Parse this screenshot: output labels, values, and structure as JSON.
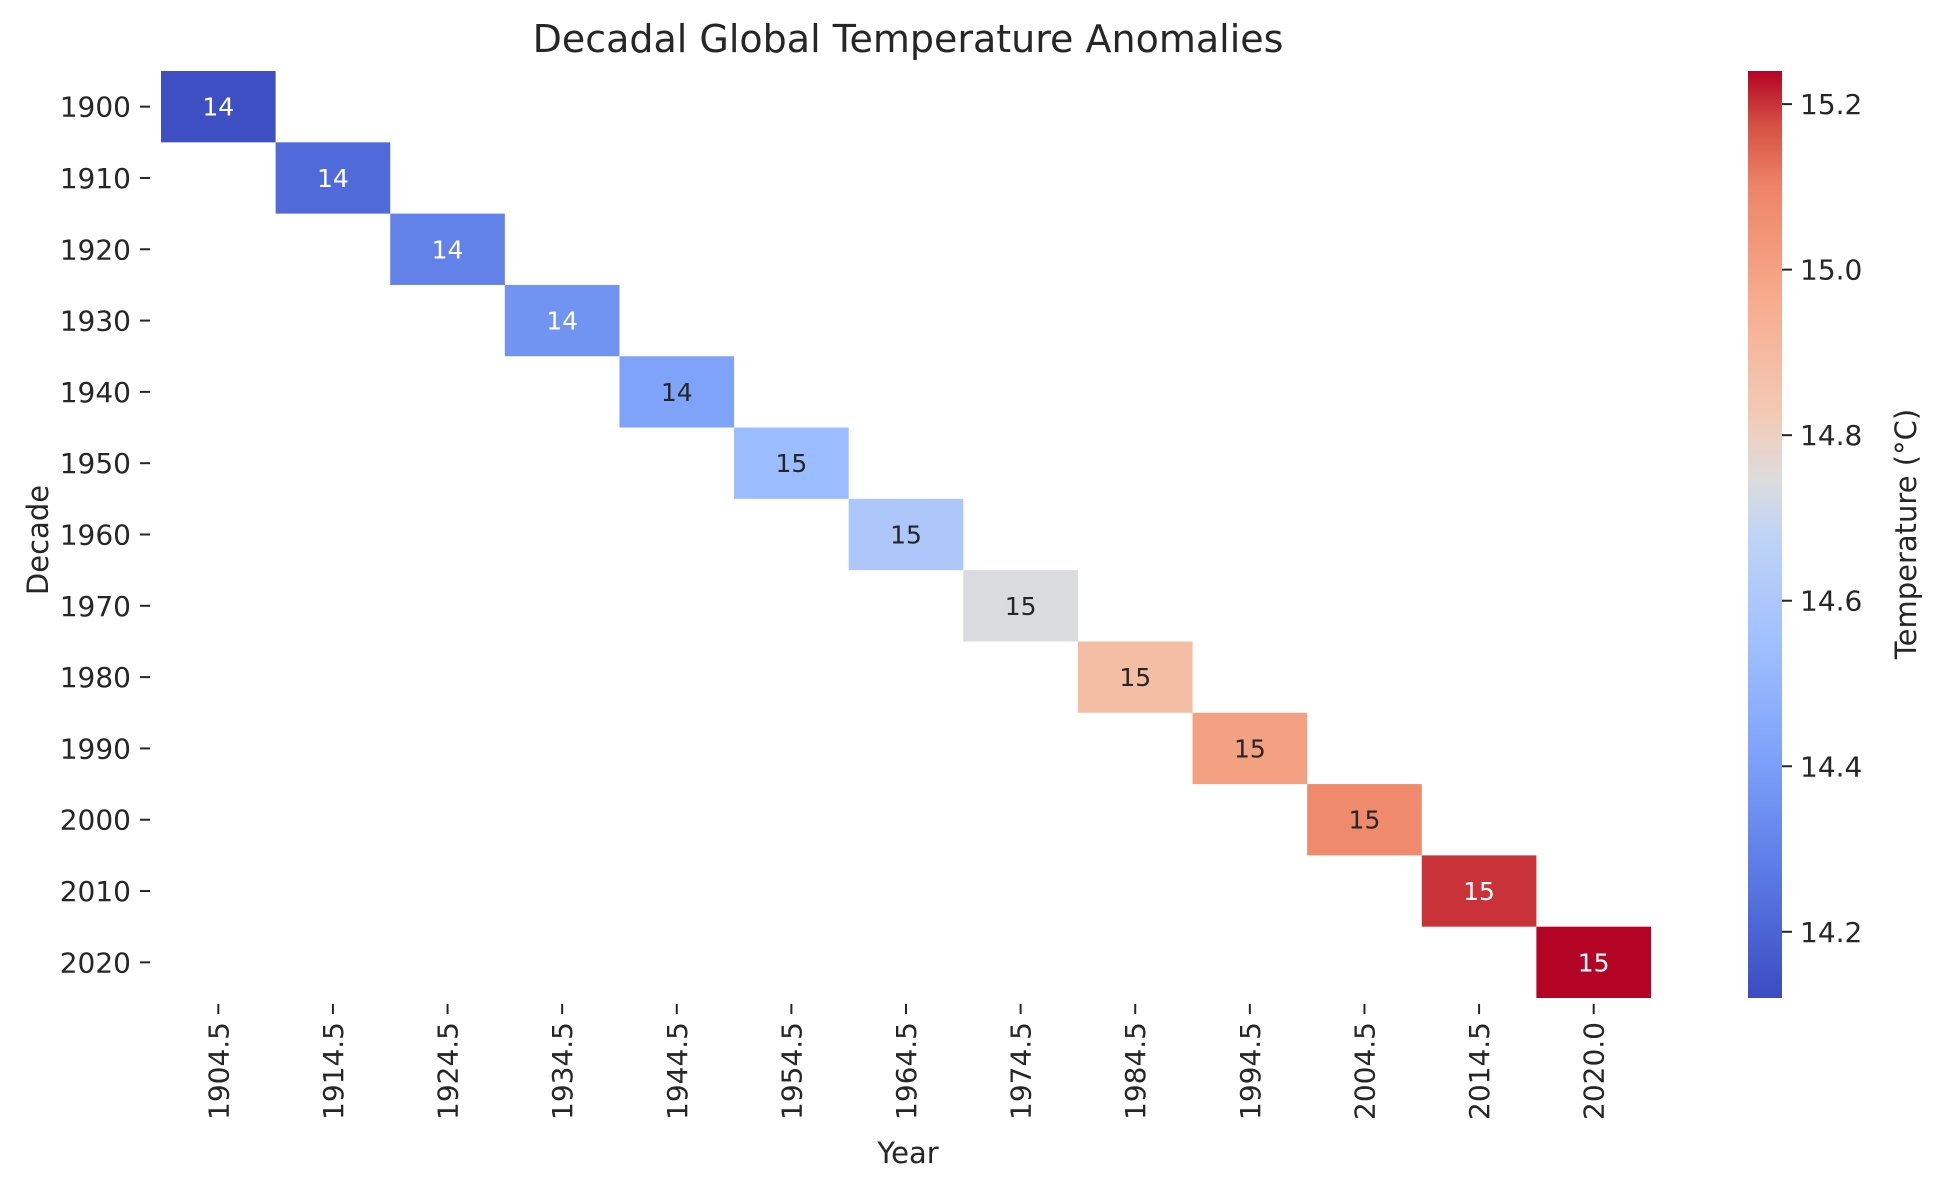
{
  "chart_data": {
    "type": "heatmap",
    "title": "Decadal Global Temperature Anomalies",
    "xlabel": "Year",
    "ylabel": "Decade",
    "x_categories": [
      "1904.5",
      "1914.5",
      "1924.5",
      "1934.5",
      "1944.5",
      "1954.5",
      "1964.5",
      "1974.5",
      "1984.5",
      "1994.5",
      "2004.5",
      "2014.5",
      "2020.0"
    ],
    "y_categories": [
      "1900",
      "1910",
      "1920",
      "1930",
      "1940",
      "1950",
      "1960",
      "1970",
      "1980",
      "1990",
      "2000",
      "2010",
      "2020"
    ],
    "cells": [
      {
        "x": "1904.5",
        "y": "1900",
        "value": 14.13,
        "label": "14"
      },
      {
        "x": "1914.5",
        "y": "1910",
        "value": 14.22,
        "label": "14"
      },
      {
        "x": "1924.5",
        "y": "1920",
        "value": 14.3,
        "label": "14"
      },
      {
        "x": "1934.5",
        "y": "1930",
        "value": 14.36,
        "label": "14"
      },
      {
        "x": "1944.5",
        "y": "1940",
        "value": 14.42,
        "label": "14"
      },
      {
        "x": "1954.5",
        "y": "1950",
        "value": 14.53,
        "label": "15"
      },
      {
        "x": "1964.5",
        "y": "1960",
        "value": 14.6,
        "label": "15"
      },
      {
        "x": "1974.5",
        "y": "1970",
        "value": 14.74,
        "label": "15"
      },
      {
        "x": "1984.5",
        "y": "1980",
        "value": 14.88,
        "label": "15"
      },
      {
        "x": "1994.5",
        "y": "1990",
        "value": 15.0,
        "label": "15"
      },
      {
        "x": "2004.5",
        "y": "2000",
        "value": 15.08,
        "label": "15"
      },
      {
        "x": "2014.5",
        "y": "2010",
        "value": 15.2,
        "label": "15"
      },
      {
        "x": "2020.0",
        "y": "2020",
        "value": 15.24,
        "label": "15"
      }
    ],
    "colorbar": {
      "label": "Temperature (°C)",
      "min": 14.12,
      "max": 15.24,
      "ticks": [
        "14.2",
        "14.4",
        "14.6",
        "14.8",
        "15.0",
        "15.2"
      ],
      "colormap": "coolwarm",
      "placement": "right"
    },
    "grid": false,
    "empty_cells": "blank"
  }
}
